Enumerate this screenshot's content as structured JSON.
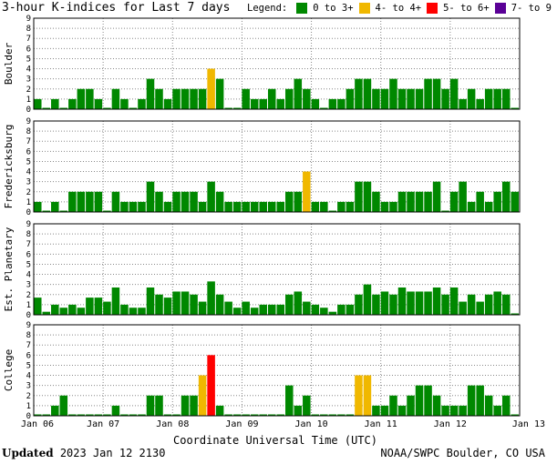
{
  "title": "3-hour K-indices for Last 7 days",
  "legend": {
    "label": "Legend:",
    "items": [
      {
        "label": "0 to 3+",
        "color": "#008800"
      },
      {
        "label": "4- to 4+",
        "color": "#f0b800"
      },
      {
        "label": "5- to 6+",
        "color": "#ff0000"
      },
      {
        "label": "7- to 9",
        "color": "#5a0096"
      }
    ]
  },
  "footer": {
    "updated_label": "Updated",
    "updated_value": "2023 Jan 12 2130",
    "credit": "NOAA/SWPC Boulder, CO USA"
  },
  "chart_data": {
    "type": "bar",
    "xlabel": "Coordinate Universal Time (UTC)",
    "x_ticks": [
      "Jan 06",
      "Jan 07",
      "Jan 08",
      "Jan 09",
      "Jan 10",
      "Jan 11",
      "Jan 12",
      "Jan 13"
    ],
    "ylim": [
      0,
      9
    ],
    "y_ticks": [
      0,
      1,
      2,
      3,
      4,
      5,
      6,
      7,
      8,
      9
    ],
    "bins_per_day": 8,
    "panels": [
      {
        "name": "Boulder",
        "values": [
          1,
          0,
          1,
          0,
          1,
          2,
          2,
          1,
          0,
          2,
          1,
          0,
          1,
          3,
          2,
          1,
          2,
          2,
          2,
          2,
          4,
          3,
          0,
          0,
          2,
          1,
          1,
          2,
          1,
          2,
          3,
          2,
          1,
          0,
          1,
          1,
          2,
          3,
          3,
          2,
          2,
          3,
          2,
          2,
          2,
          3,
          3,
          2,
          3,
          1,
          2,
          1,
          2,
          2,
          2,
          0
        ]
      },
      {
        "name": "Fredericksburg",
        "values": [
          1,
          0,
          1,
          0,
          2,
          2,
          2,
          2,
          0,
          2,
          1,
          1,
          1,
          3,
          2,
          1,
          2,
          2,
          2,
          1,
          3,
          2,
          1,
          1,
          1,
          1,
          1,
          1,
          1,
          2,
          2,
          4,
          1,
          1,
          0,
          1,
          1,
          3,
          3,
          2,
          1,
          1,
          2,
          2,
          2,
          2,
          3,
          0,
          2,
          3,
          1,
          2,
          1,
          2,
          3,
          2
        ]
      },
      {
        "name": "Est. Planetary",
        "values": [
          1.7,
          0.3,
          1,
          0.7,
          1,
          0.7,
          1.7,
          1.7,
          1.3,
          2.7,
          1,
          0.7,
          0.7,
          2.7,
          2,
          1.7,
          2.3,
          2.3,
          2,
          1.3,
          3.3,
          2,
          1.3,
          0.7,
          1.3,
          0.7,
          1,
          1,
          1,
          2,
          2.3,
          1.3,
          1,
          0.7,
          0.3,
          1,
          1,
          2,
          3,
          2,
          2.3,
          2,
          2.7,
          2.3,
          2.3,
          2.3,
          2.7,
          2,
          2.7,
          1.3,
          2,
          1.3,
          2,
          2.3,
          2,
          0
        ]
      },
      {
        "name": "College",
        "values": [
          0,
          0,
          1,
          2,
          0,
          0,
          0,
          0,
          0,
          1,
          0,
          0,
          0,
          2,
          2,
          0,
          0,
          2,
          2,
          4,
          6,
          1,
          0,
          0,
          0,
          0,
          0,
          0,
          0,
          3,
          1,
          2,
          0,
          0,
          0,
          0,
          0,
          4,
          4,
          1,
          1,
          2,
          1,
          2,
          3,
          3,
          2,
          1,
          1,
          1,
          3,
          3,
          2,
          1,
          2,
          0
        ]
      }
    ]
  }
}
